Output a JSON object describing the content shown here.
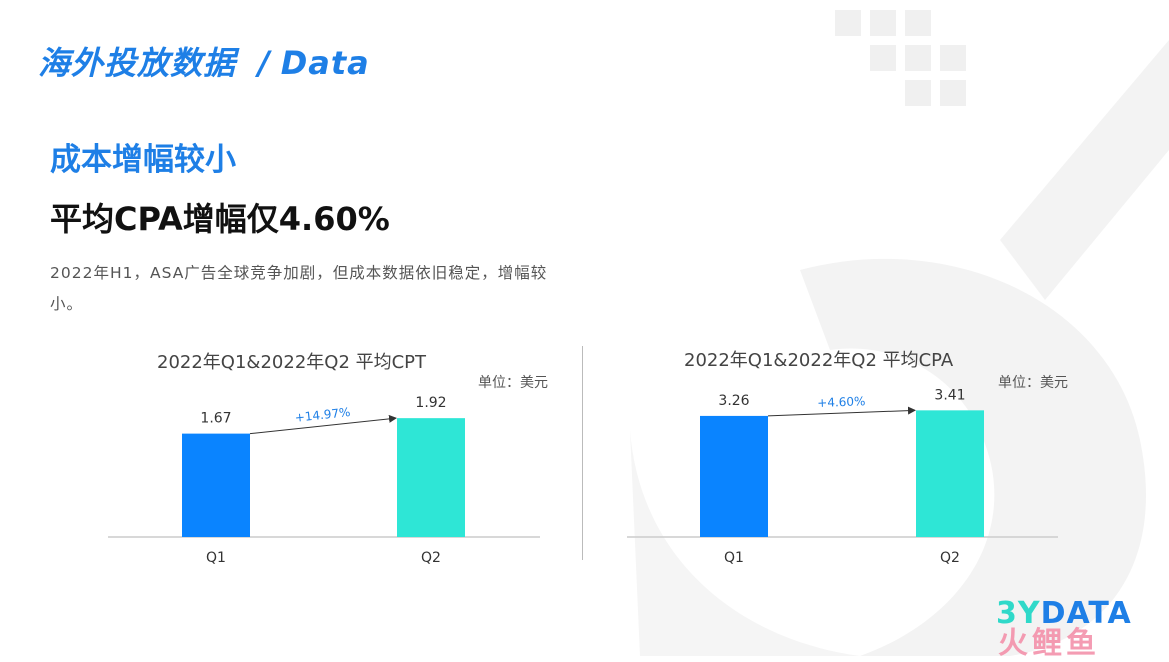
{
  "header": {
    "title_cn": "海外投放数据",
    "divider": "/",
    "title_en": "Data"
  },
  "subhead": "成本增幅较小",
  "headline": "平均CPA增幅仅4.60%",
  "description": "2022年H1，ASA广告全球竞争加剧，但成本数据依旧稳定，增幅较小。",
  "logo": {
    "lead": "3Y",
    "rest": "DATA",
    "sub": "火鲤鱼"
  },
  "colors": {
    "q1": "#0a84ff",
    "q2": "#2ee6d6",
    "accent": "#1e7fe6",
    "axis": "#cccccc"
  },
  "chart_data": [
    {
      "type": "bar",
      "title": "2022年Q1&2022年Q2 平均CPT",
      "unit": "单位：美元",
      "categories": [
        "Q1",
        "Q2"
      ],
      "values": [
        1.67,
        1.92
      ],
      "value_labels": [
        "1.67",
        "1.92"
      ],
      "change_label": "+14.97%",
      "ylim": [
        0,
        2.1
      ]
    },
    {
      "type": "bar",
      "title": "2022年Q1&2022年Q2 平均CPA",
      "unit": "单位：美元",
      "categories": [
        "Q1",
        "Q2"
      ],
      "values": [
        3.26,
        3.41
      ],
      "value_labels": [
        "3.26",
        "3.41"
      ],
      "change_label": "+4.60%",
      "ylim": [
        0,
        3.5
      ]
    }
  ]
}
